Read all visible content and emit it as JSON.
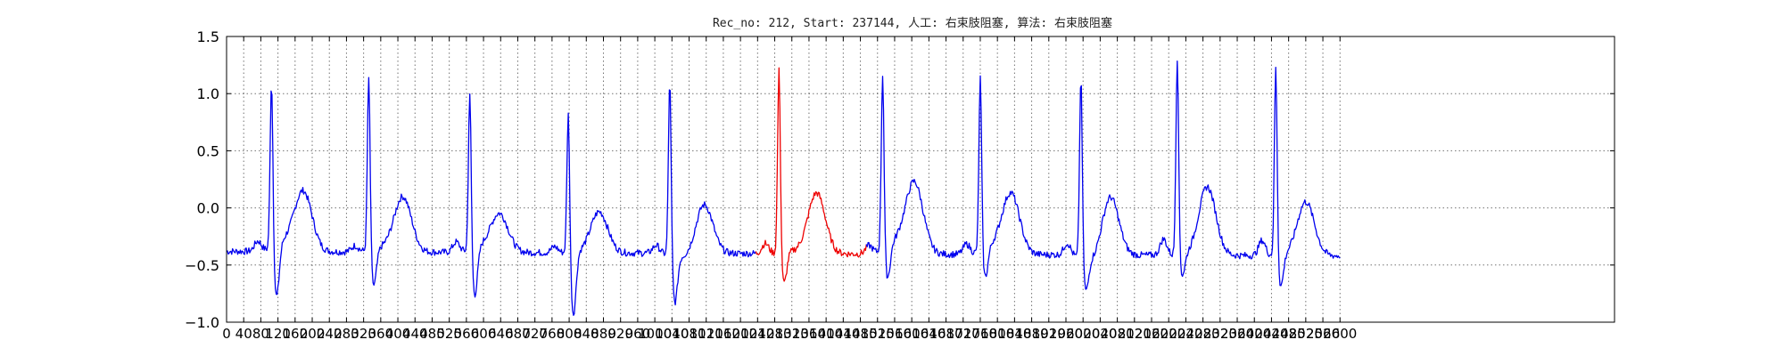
{
  "chart_data": {
    "type": "line",
    "title": "Rec_no: 212, Start: 237144, 人工: 右束肢阻塞, 算法: 右束肢阻塞",
    "xlabel": "",
    "ylabel": "",
    "xlim": [
      0,
      3241
    ],
    "ylim": [
      -1.0,
      1.5
    ],
    "grid": true,
    "y_ticks": [
      -1.0,
      -0.5,
      0.0,
      0.5,
      1.0,
      1.5
    ],
    "y_tick_labels": [
      "−1.0",
      "−0.5",
      "0.0",
      "0.5",
      "1.0",
      "1.5"
    ],
    "x_tick_step": 40,
    "x_tick_max": 2600,
    "colors": {
      "normal": "#0000ee",
      "highlight": "#ee0000"
    },
    "highlight_range": [
      1237,
      1494
    ],
    "beats": [
      {
        "r": 105,
        "amp": 1.16,
        "s": -0.85,
        "t": 0.28,
        "tpos": 75,
        "p": -0.1,
        "pw": 0.1
      },
      {
        "r": 332,
        "amp": 1.18,
        "s": -0.7,
        "t": 0.27,
        "tpos": 80,
        "p": -0.2,
        "pw": 0.04
      },
      {
        "r": 568,
        "amp": 1.05,
        "s": -0.8,
        "t": 0.05,
        "tpos": 70,
        "p": -0.1,
        "pw": 0.06
      },
      {
        "r": 798,
        "amp": 0.93,
        "s": -0.95,
        "t": 0.13,
        "tpos": 72,
        "p": -0.2,
        "pw": 0.0
      },
      {
        "r": 1035,
        "amp": 1.22,
        "s": -0.8,
        "t": 0.25,
        "tpos": 80,
        "p": -0.15,
        "pw": -0.05
      },
      {
        "r": 1290,
        "amp": 1.28,
        "s": -0.65,
        "t": 0.35,
        "tpos": 88,
        "p": -0.1,
        "pw": 0.02,
        "red": true
      },
      {
        "r": 1532,
        "amp": 1.22,
        "s": -0.65,
        "t": 0.4,
        "tpos": 75,
        "p": -0.15,
        "pw": 0.12
      },
      {
        "r": 1760,
        "amp": 1.2,
        "s": -0.62,
        "t": 0.3,
        "tpos": 72,
        "p": -0.1,
        "pw": 0.08
      },
      {
        "r": 1995,
        "amp": 1.26,
        "s": -0.65,
        "t": 0.42,
        "tpos": 68,
        "p": -0.05,
        "pw": -0.1
      },
      {
        "r": 2220,
        "amp": 1.4,
        "s": -0.55,
        "t": 0.45,
        "tpos": 70,
        "p": 0.05,
        "pw": 0.0
      },
      {
        "r": 2450,
        "amp": 1.32,
        "s": -0.65,
        "t": 0.28,
        "tpos": 70,
        "p": 0.03,
        "pw": 0.0
      }
    ],
    "end_x": 2600,
    "baseline_start": -0.38,
    "baseline_end": -0.42
  }
}
